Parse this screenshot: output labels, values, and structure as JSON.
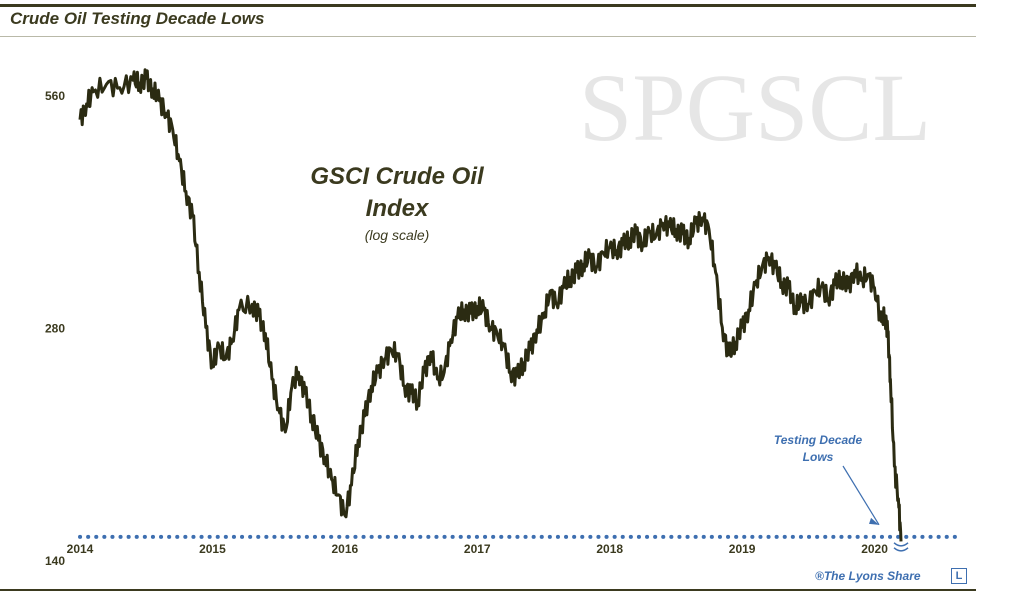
{
  "header": {
    "title": "Crude Oil Testing Decade Lows"
  },
  "footer": {
    "copyright": "®The Lyons Share",
    "logo_letter": "L"
  },
  "colors": {
    "line": "#2b2b12",
    "accent": "#3e6fb0",
    "watermark": "#e6e6e6",
    "text": "#3b3a1f"
  },
  "chart_data": {
    "type": "line",
    "title": "GSCI Crude Oil Index",
    "subtitle": "(log scale)",
    "watermark": "SPGSCL",
    "xlabel": "",
    "ylabel": "",
    "y_scale": "log",
    "ylim": [
      140,
      640
    ],
    "xlim": [
      2014.0,
      2020.6
    ],
    "x_ticks": [
      "2014",
      "2015",
      "2016",
      "2017",
      "2018",
      "2019",
      "2020"
    ],
    "y_ticks": [
      "140",
      "280",
      "560"
    ],
    "grid": false,
    "series": [
      {
        "x": [
          2014.0,
          2014.05,
          2014.1,
          2014.2,
          2014.3,
          2014.4,
          2014.45,
          2014.5,
          2014.55,
          2014.6,
          2014.65,
          2014.7,
          2014.75,
          2014.8,
          2014.85,
          2014.9,
          2014.95,
          2015.0,
          2015.05,
          2015.1,
          2015.15,
          2015.2,
          2015.3,
          2015.35,
          2015.4,
          2015.45,
          2015.5,
          2015.55,
          2015.6,
          2015.65,
          2015.7,
          2015.75,
          2015.8,
          2015.85,
          2015.9,
          2015.95,
          2016.0,
          2016.05,
          2016.1,
          2016.15,
          2016.2,
          2016.25,
          2016.3,
          2016.35,
          2016.4,
          2016.45,
          2016.5,
          2016.55,
          2016.6,
          2016.65,
          2016.7,
          2016.75,
          2016.8,
          2016.85,
          2016.9,
          2016.95,
          2017.0,
          2017.05,
          2017.1,
          2017.15,
          2017.2,
          2017.25,
          2017.3,
          2017.35,
          2017.4,
          2017.45,
          2017.5,
          2017.55,
          2017.6,
          2017.65,
          2017.7,
          2017.75,
          2017.8,
          2017.85,
          2017.9,
          2017.95,
          2018.0,
          2018.05,
          2018.1,
          2018.15,
          2018.2,
          2018.25,
          2018.3,
          2018.35,
          2018.4,
          2018.45,
          2018.5,
          2018.55,
          2018.6,
          2018.65,
          2018.7,
          2018.75,
          2018.8,
          2018.85,
          2018.9,
          2018.95,
          2019.0,
          2019.05,
          2019.1,
          2019.15,
          2019.2,
          2019.25,
          2019.3,
          2019.35,
          2019.4,
          2019.45,
          2019.5,
          2019.55,
          2019.6,
          2019.65,
          2019.7,
          2019.75,
          2019.8,
          2019.85,
          2019.9,
          2019.95,
          2020.0,
          2020.05,
          2020.08,
          2020.1,
          2020.12,
          2020.15,
          2020.18,
          2020.2
        ],
        "y": [
          520,
          545,
          565,
          578,
          572,
          585,
          580,
          588,
          570,
          550,
          530,
          505,
          460,
          420,
          390,
          330,
          280,
          250,
          265,
          255,
          270,
          295,
          300,
          290,
          275,
          240,
          220,
          205,
          235,
          245,
          230,
          215,
          200,
          190,
          178,
          170,
          160,
          175,
          200,
          215,
          235,
          245,
          255,
          262,
          258,
          235,
          230,
          225,
          245,
          260,
          240,
          245,
          270,
          288,
          295,
          292,
          298,
          295,
          280,
          275,
          265,
          245,
          242,
          252,
          262,
          278,
          288,
          312,
          300,
          315,
          325,
          330,
          338,
          345,
          335,
          350,
          355,
          352,
          358,
          365,
          370,
          360,
          372,
          368,
          382,
          378,
          375,
          370,
          365,
          382,
          388,
          375,
          330,
          280,
          258,
          268,
          280,
          295,
          318,
          335,
          345,
          335,
          320,
          315,
          298,
          302,
          300,
          312,
          316,
          305,
          318,
          325,
          315,
          332,
          322,
          328,
          315,
          285,
          290,
          275,
          240,
          185,
          168,
          148
        ],
        "color": "#2b2b12"
      }
    ],
    "reference_line": {
      "value": 150,
      "style": "dotted",
      "color": "#3e6fb0"
    },
    "annotations": [
      {
        "text_lines": [
          "Testing Decade",
          "Lows"
        ],
        "points_to": [
          2020.2,
          150
        ]
      }
    ]
  }
}
